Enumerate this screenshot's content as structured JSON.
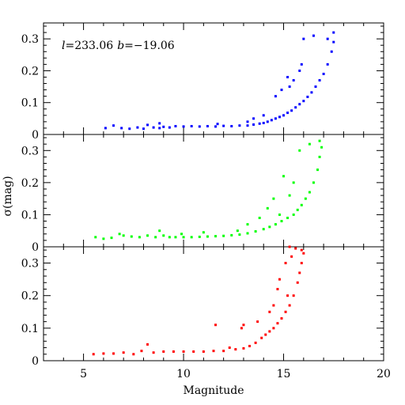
{
  "chart_data": {
    "type": "scatter",
    "title": "",
    "xlabel": "Magnitude",
    "ylabel": "σ(mag)",
    "xlim": [
      3,
      20
    ],
    "ylim": [
      0,
      0.35
    ],
    "x_ticks": [
      5,
      10,
      15,
      20
    ],
    "y_ticks": [
      0,
      0.1,
      0.2,
      0.3
    ],
    "x_tick_labels": [
      "5",
      "10",
      "15",
      "20"
    ],
    "y_tick_labels": [
      "0",
      "0.1",
      "0.2",
      "0.3"
    ],
    "annotation": {
      "l_symbol": "l",
      "l_value": "=233.06",
      "b_symbol": "b",
      "b_value": "=−19.06"
    },
    "grid": false,
    "panels": [
      {
        "color": "#0000ff",
        "points": [
          [
            6.1,
            0.02
          ],
          [
            6.5,
            0.028
          ],
          [
            6.9,
            0.02
          ],
          [
            7.3,
            0.018
          ],
          [
            7.7,
            0.022
          ],
          [
            8.0,
            0.018
          ],
          [
            8.2,
            0.03
          ],
          [
            8.5,
            0.022
          ],
          [
            8.8,
            0.02
          ],
          [
            9.0,
            0.024
          ],
          [
            9.3,
            0.022
          ],
          [
            9.6,
            0.026
          ],
          [
            10.0,
            0.025
          ],
          [
            10.4,
            0.026
          ],
          [
            10.8,
            0.025
          ],
          [
            11.2,
            0.026
          ],
          [
            11.6,
            0.025
          ],
          [
            12.0,
            0.027
          ],
          [
            12.4,
            0.026
          ],
          [
            12.8,
            0.028
          ],
          [
            13.2,
            0.028
          ],
          [
            13.5,
            0.031
          ],
          [
            13.8,
            0.034
          ],
          [
            14.0,
            0.036
          ],
          [
            14.2,
            0.04
          ],
          [
            14.4,
            0.045
          ],
          [
            14.6,
            0.05
          ],
          [
            14.8,
            0.055
          ],
          [
            15.0,
            0.06
          ],
          [
            15.2,
            0.068
          ],
          [
            15.4,
            0.075
          ],
          [
            15.6,
            0.085
          ],
          [
            15.8,
            0.095
          ],
          [
            16.0,
            0.105
          ],
          [
            16.2,
            0.118
          ],
          [
            16.4,
            0.132
          ],
          [
            16.6,
            0.15
          ],
          [
            16.8,
            0.17
          ],
          [
            17.0,
            0.19
          ],
          [
            17.2,
            0.22
          ],
          [
            17.4,
            0.26
          ],
          [
            17.5,
            0.29
          ],
          [
            17.5,
            0.32
          ],
          [
            17.2,
            0.3
          ],
          [
            16.5,
            0.31
          ],
          [
            16.0,
            0.3
          ],
          [
            15.9,
            0.22
          ],
          [
            15.8,
            0.2
          ],
          [
            15.2,
            0.18
          ],
          [
            15.5,
            0.17
          ],
          [
            14.6,
            0.12
          ],
          [
            14.9,
            0.14
          ],
          [
            15.3,
            0.15
          ],
          [
            14.0,
            0.06
          ],
          [
            13.5,
            0.05
          ],
          [
            13.2,
            0.04
          ],
          [
            11.7,
            0.033
          ],
          [
            8.8,
            0.035
          ]
        ]
      },
      {
        "color": "#00ff00",
        "points": [
          [
            5.6,
            0.03
          ],
          [
            6.0,
            0.025
          ],
          [
            6.4,
            0.028
          ],
          [
            6.8,
            0.04
          ],
          [
            7.0,
            0.035
          ],
          [
            7.4,
            0.032
          ],
          [
            7.8,
            0.03
          ],
          [
            8.2,
            0.035
          ],
          [
            8.6,
            0.03
          ],
          [
            8.8,
            0.05
          ],
          [
            9.0,
            0.035
          ],
          [
            9.3,
            0.03
          ],
          [
            9.6,
            0.03
          ],
          [
            10.0,
            0.03
          ],
          [
            10.4,
            0.03
          ],
          [
            10.8,
            0.031
          ],
          [
            11.2,
            0.032
          ],
          [
            11.6,
            0.033
          ],
          [
            12.0,
            0.034
          ],
          [
            12.4,
            0.036
          ],
          [
            12.8,
            0.038
          ],
          [
            13.2,
            0.042
          ],
          [
            13.6,
            0.048
          ],
          [
            14.0,
            0.055
          ],
          [
            14.3,
            0.062
          ],
          [
            14.6,
            0.07
          ],
          [
            14.9,
            0.08
          ],
          [
            15.2,
            0.09
          ],
          [
            15.5,
            0.1
          ],
          [
            15.7,
            0.115
          ],
          [
            15.9,
            0.13
          ],
          [
            16.1,
            0.15
          ],
          [
            16.3,
            0.17
          ],
          [
            16.5,
            0.2
          ],
          [
            16.7,
            0.24
          ],
          [
            16.8,
            0.28
          ],
          [
            16.9,
            0.31
          ],
          [
            16.8,
            0.33
          ],
          [
            16.3,
            0.32
          ],
          [
            15.8,
            0.3
          ],
          [
            15.5,
            0.2
          ],
          [
            15.0,
            0.22
          ],
          [
            15.3,
            0.16
          ],
          [
            14.5,
            0.15
          ],
          [
            14.2,
            0.12
          ],
          [
            14.8,
            0.1
          ],
          [
            13.8,
            0.09
          ],
          [
            13.2,
            0.07
          ],
          [
            12.7,
            0.05
          ],
          [
            11.0,
            0.045
          ],
          [
            9.9,
            0.04
          ]
        ]
      },
      {
        "color": "#ff0000",
        "points": [
          [
            5.5,
            0.02
          ],
          [
            6.0,
            0.022
          ],
          [
            6.5,
            0.022
          ],
          [
            7.0,
            0.025
          ],
          [
            7.5,
            0.02
          ],
          [
            7.9,
            0.03
          ],
          [
            8.2,
            0.05
          ],
          [
            8.5,
            0.025
          ],
          [
            9.0,
            0.028
          ],
          [
            9.5,
            0.028
          ],
          [
            10.0,
            0.028
          ],
          [
            10.5,
            0.028
          ],
          [
            11.0,
            0.028
          ],
          [
            11.5,
            0.03
          ],
          [
            12.0,
            0.03
          ],
          [
            12.3,
            0.04
          ],
          [
            12.6,
            0.035
          ],
          [
            13.0,
            0.038
          ],
          [
            13.3,
            0.045
          ],
          [
            13.6,
            0.055
          ],
          [
            13.9,
            0.07
          ],
          [
            14.1,
            0.08
          ],
          [
            14.3,
            0.09
          ],
          [
            14.5,
            0.1
          ],
          [
            14.7,
            0.115
          ],
          [
            14.9,
            0.13
          ],
          [
            15.1,
            0.15
          ],
          [
            15.3,
            0.17
          ],
          [
            15.5,
            0.2
          ],
          [
            15.7,
            0.24
          ],
          [
            15.8,
            0.27
          ],
          [
            15.9,
            0.3
          ],
          [
            16.0,
            0.33
          ],
          [
            15.9,
            0.34
          ],
          [
            15.6,
            0.345
          ],
          [
            15.3,
            0.35
          ],
          [
            15.1,
            0.3
          ],
          [
            14.8,
            0.25
          ],
          [
            15.2,
            0.2
          ],
          [
            14.5,
            0.17
          ],
          [
            14.3,
            0.15
          ],
          [
            13.7,
            0.12
          ],
          [
            13.0,
            0.11
          ],
          [
            12.9,
            0.1
          ],
          [
            14.7,
            0.22
          ],
          [
            15.4,
            0.32
          ],
          [
            11.6,
            0.11
          ]
        ]
      }
    ]
  }
}
